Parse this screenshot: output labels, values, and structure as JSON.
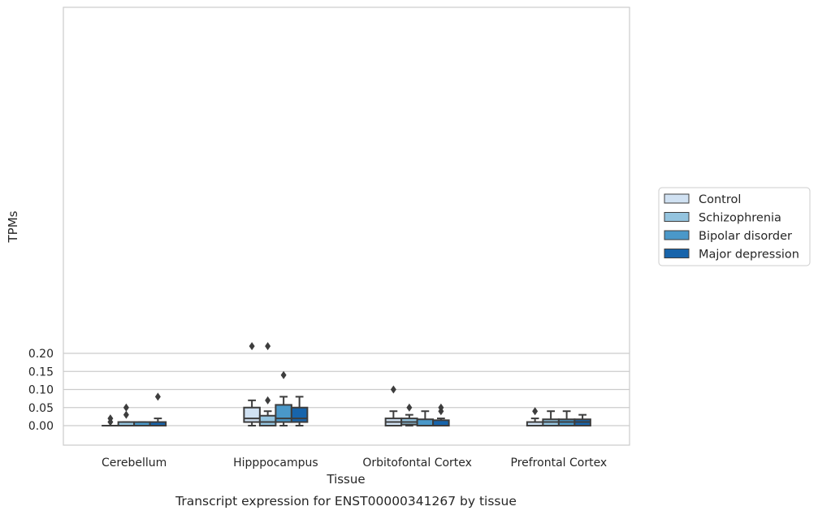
{
  "chart_data": {
    "type": "box",
    "title": "",
    "caption": "Transcript expression for ENST00000341267 by tissue",
    "xlabel": "Tissue",
    "ylabel": "TPMs",
    "ylim": [
      -0.011,
      0.231
    ],
    "yticks": [
      0.0,
      0.05,
      0.1,
      0.15,
      0.2
    ],
    "ytick_labels": [
      "0.00",
      "0.05",
      "0.10",
      "0.15",
      "0.20"
    ],
    "grid": "horizontal",
    "legend_position": "right",
    "categories": [
      "Cerebellum",
      "Hipppocampus",
      "Orbitofontal Cortex",
      "Prefrontal Cortex"
    ],
    "series": [
      {
        "name": "Control",
        "color": "#d0e1f2",
        "boxes": [
          {
            "whislo": 0.0,
            "q1": 0.0,
            "med": 0.0,
            "q3": 0.0,
            "whishi": 0.0,
            "fliers": [
              0.01,
              0.02
            ]
          },
          {
            "whislo": 0.0,
            "q1": 0.01,
            "med": 0.02,
            "q3": 0.05,
            "whishi": 0.07,
            "fliers": [
              0.22
            ]
          },
          {
            "whislo": 0.0,
            "q1": 0.0,
            "med": 0.01,
            "q3": 0.02,
            "whishi": 0.04,
            "fliers": [
              0.1
            ]
          },
          {
            "whislo": 0.0,
            "q1": 0.0,
            "med": 0.0,
            "q3": 0.01,
            "whishi": 0.02,
            "fliers": [
              0.04
            ]
          }
        ]
      },
      {
        "name": "Schizophrenia",
        "color": "#94c4df",
        "boxes": [
          {
            "whislo": 0.0,
            "q1": 0.0,
            "med": 0.0,
            "q3": 0.01,
            "whishi": 0.01,
            "fliers": [
              0.03,
              0.05
            ]
          },
          {
            "whislo": 0.0,
            "q1": 0.0,
            "med": 0.01,
            "q3": 0.0275,
            "whishi": 0.04,
            "fliers": [
              0.07,
              0.22
            ]
          },
          {
            "whislo": 0.0,
            "q1": 0.003,
            "med": 0.01,
            "q3": 0.02,
            "whishi": 0.03,
            "fliers": [
              0.05
            ]
          },
          {
            "whislo": 0.0,
            "q1": 0.0,
            "med": 0.01,
            "q3": 0.0175,
            "whishi": 0.04,
            "fliers": []
          }
        ]
      },
      {
        "name": "Bipolar disorder",
        "color": "#4a98c9",
        "boxes": [
          {
            "whislo": 0.0,
            "q1": 0.0,
            "med": 0.0,
            "q3": 0.01,
            "whishi": 0.01,
            "fliers": []
          },
          {
            "whislo": 0.0,
            "q1": 0.01,
            "med": 0.02,
            "q3": 0.0575,
            "whishi": 0.08,
            "fliers": [
              0.14
            ]
          },
          {
            "whislo": 0.0,
            "q1": 0.0,
            "med": 0.0,
            "q3": 0.0175,
            "whishi": 0.04,
            "fliers": []
          },
          {
            "whislo": 0.0,
            "q1": 0.0,
            "med": 0.01,
            "q3": 0.0175,
            "whishi": 0.04,
            "fliers": []
          }
        ]
      },
      {
        "name": "Major depression",
        "color": "#1764ab",
        "boxes": [
          {
            "whislo": 0.0,
            "q1": 0.0,
            "med": 0.0,
            "q3": 0.01,
            "whishi": 0.02,
            "fliers": [
              0.08
            ]
          },
          {
            "whislo": 0.0,
            "q1": 0.01,
            "med": 0.02,
            "q3": 0.05,
            "whishi": 0.08,
            "fliers": []
          },
          {
            "whislo": 0.0,
            "q1": 0.0,
            "med": 0.0,
            "q3": 0.015,
            "whishi": 0.02,
            "fliers": [
              0.04,
              0.05
            ]
          },
          {
            "whislo": 0.0,
            "q1": 0.0,
            "med": 0.01,
            "q3": 0.0175,
            "whishi": 0.03,
            "fliers": []
          }
        ]
      }
    ]
  }
}
